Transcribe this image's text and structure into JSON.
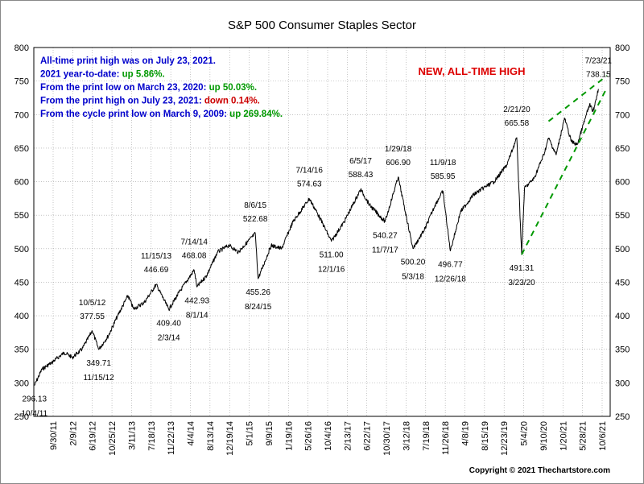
{
  "chart_data": {
    "type": "line",
    "title": "S&P 500 Consumer Staples Sector",
    "ylim": [
      250,
      800
    ],
    "y_ticks": [
      250,
      300,
      350,
      400,
      450,
      500,
      550,
      600,
      650,
      700,
      750,
      800
    ],
    "x_tick_labels": [
      "9/30/11",
      "2/9/12",
      "6/19/12",
      "10/25/12",
      "3/11/13",
      "7/18/13",
      "11/22/13",
      "4/4/14",
      "8/13/14",
      "12/19/14",
      "5/1/15",
      "9/9/15",
      "1/19/16",
      "5/26/16",
      "10/4/16",
      "2/13/17",
      "6/22/17",
      "10/30/17",
      "3/12/18",
      "7/19/18",
      "11/26/18",
      "4/8/19",
      "8/15/19",
      "12/23/19",
      "5/4/20",
      "9/10/20",
      "1/20/21",
      "5/28/21",
      "10/6/21"
    ],
    "x_range": [
      "2011-09-30",
      "2021-10-06"
    ],
    "grid": true,
    "series": [
      {
        "name": "",
        "color": "#000000",
        "points": [
          [
            "2011-10-04",
            296.13
          ],
          [
            "2011-11-20",
            320
          ],
          [
            "2012-01-20",
            330
          ],
          [
            "2012-04-10",
            345
          ],
          [
            "2012-06-01",
            338
          ],
          [
            "2012-08-01",
            350
          ],
          [
            "2012-10-05",
            377.55
          ],
          [
            "2012-11-15",
            349.71
          ],
          [
            "2013-01-15",
            370
          ],
          [
            "2013-03-15",
            400
          ],
          [
            "2013-05-20",
            430
          ],
          [
            "2013-06-25",
            410
          ],
          [
            "2013-09-01",
            420
          ],
          [
            "2013-11-15",
            446.69
          ],
          [
            "2014-02-03",
            409.4
          ],
          [
            "2014-04-10",
            435
          ],
          [
            "2014-07-14",
            468.08
          ],
          [
            "2014-08-01",
            442.93
          ],
          [
            "2014-10-01",
            460
          ],
          [
            "2014-12-10",
            495
          ],
          [
            "2015-02-20",
            505
          ],
          [
            "2015-04-20",
            495
          ],
          [
            "2015-08-06",
            522.68
          ],
          [
            "2015-08-24",
            455.26
          ],
          [
            "2015-11-15",
            505
          ],
          [
            "2016-01-20",
            500
          ],
          [
            "2016-04-01",
            540
          ],
          [
            "2016-07-14",
            574.63
          ],
          [
            "2016-09-10",
            550
          ],
          [
            "2016-12-01",
            511.0
          ],
          [
            "2017-02-20",
            540
          ],
          [
            "2017-06-05",
            588.43
          ],
          [
            "2017-08-01",
            565
          ],
          [
            "2017-11-07",
            540.27
          ],
          [
            "2018-01-29",
            606.9
          ],
          [
            "2018-05-03",
            500.2
          ],
          [
            "2018-07-19",
            530
          ],
          [
            "2018-09-20",
            565
          ],
          [
            "2018-11-09",
            585.95
          ],
          [
            "2018-12-26",
            496.77
          ],
          [
            "2019-03-01",
            555
          ],
          [
            "2019-05-20",
            580
          ],
          [
            "2019-07-20",
            590
          ],
          [
            "2019-10-01",
            600
          ],
          [
            "2019-12-20",
            625
          ],
          [
            "2020-02-21",
            665.58
          ],
          [
            "2020-03-23",
            491.31
          ],
          [
            "2020-04-10",
            590
          ],
          [
            "2020-06-10",
            605
          ],
          [
            "2020-08-10",
            640
          ],
          [
            "2020-09-10",
            665
          ],
          [
            "2020-10-28",
            640
          ],
          [
            "2020-12-20",
            695
          ],
          [
            "2021-02-01",
            660
          ],
          [
            "2021-03-10",
            655
          ],
          [
            "2021-05-28",
            715
          ],
          [
            "2021-06-20",
            705
          ],
          [
            "2021-07-23",
            738.15
          ]
        ]
      }
    ],
    "trendlines": [
      {
        "color": "#009900",
        "style": "dashed",
        "points": [
          [
            "2020-03-23",
            491.31
          ],
          [
            "2021-09-15",
            740
          ]
        ]
      },
      {
        "color": "#009900",
        "style": "dashed",
        "points": [
          [
            "2020-09-10",
            690
          ],
          [
            "2021-09-15",
            758
          ]
        ]
      }
    ],
    "annotations": [
      {
        "date": "2011-10-04",
        "value": 296.13,
        "label_value": "296.13",
        "label_date": "10/4/11",
        "position": "below"
      },
      {
        "date": "2012-10-05",
        "value": 377.55,
        "label_value": "377.55",
        "label_date": "10/5/12",
        "position": "above"
      },
      {
        "date": "2012-11-15",
        "value": 349.71,
        "label_value": "349.71",
        "label_date": "11/15/12",
        "position": "below"
      },
      {
        "date": "2013-11-15",
        "value": 446.69,
        "label_value": "446.69",
        "label_date": "11/15/13",
        "position": "above"
      },
      {
        "date": "2014-02-03",
        "value": 409.4,
        "label_value": "409.40",
        "label_date": "2/3/14",
        "position": "below"
      },
      {
        "date": "2014-07-14",
        "value": 468.08,
        "label_value": "468.08",
        "label_date": "7/14/14",
        "position": "above"
      },
      {
        "date": "2014-08-01",
        "value": 442.93,
        "label_value": "442.93",
        "label_date": "8/1/14",
        "position": "below"
      },
      {
        "date": "2015-08-06",
        "value": 522.68,
        "label_value": "522.68",
        "label_date": "8/6/15",
        "position": "above"
      },
      {
        "date": "2015-08-24",
        "value": 455.26,
        "label_value": "455.26",
        "label_date": "8/24/15",
        "position": "below"
      },
      {
        "date": "2016-07-14",
        "value": 574.63,
        "label_value": "574.63",
        "label_date": "7/14/16",
        "position": "above"
      },
      {
        "date": "2016-12-01",
        "value": 511.0,
        "label_value": "511.00",
        "label_date": "12/1/16",
        "position": "below"
      },
      {
        "date": "2017-06-05",
        "value": 588.43,
        "label_value": "588.43",
        "label_date": "6/5/17",
        "position": "above"
      },
      {
        "date": "2017-11-07",
        "value": 540.27,
        "label_value": "540.27",
        "label_date": "11/7/17",
        "position": "below"
      },
      {
        "date": "2018-01-29",
        "value": 606.9,
        "label_value": "606.90",
        "label_date": "1/29/18",
        "position": "above"
      },
      {
        "date": "2018-05-03",
        "value": 500.2,
        "label_value": "500.20",
        "label_date": "5/3/18",
        "position": "below"
      },
      {
        "date": "2018-11-09",
        "value": 585.95,
        "label_value": "585.95",
        "label_date": "11/9/18",
        "position": "above"
      },
      {
        "date": "2018-12-26",
        "value": 496.77,
        "label_value": "496.77",
        "label_date": "12/26/18",
        "position": "below"
      },
      {
        "date": "2020-02-21",
        "value": 665.58,
        "label_value": "665.58",
        "label_date": "2/21/20",
        "position": "above"
      },
      {
        "date": "2020-03-23",
        "value": 491.31,
        "label_value": "491.31",
        "label_date": "3/23/20",
        "position": "below"
      },
      {
        "date": "2021-07-23",
        "value": 738.15,
        "label_value": "738.15",
        "label_date": "7/23/21",
        "position": "above"
      }
    ]
  },
  "info_lines": [
    {
      "prefix": "All-time print high was on July 23, 2021.",
      "value": "",
      "value_color": "#0000cc",
      "prefix_color": "#0000cc"
    },
    {
      "prefix": "2021 year-to-date:  ",
      "value": "up 5.86%.",
      "value_color": "#009900",
      "prefix_color": "#0000cc"
    },
    {
      "prefix": "From the print low on March 23, 2020:  ",
      "value": "up 50.03%.",
      "value_color": "#009900",
      "prefix_color": "#0000cc"
    },
    {
      "prefix": "From the print high on July 23, 2021:  ",
      "value": "down 0.14%.",
      "value_color": "#cc0000",
      "prefix_color": "#0000cc"
    },
    {
      "prefix": "From the cycle print low on March 9, 2009:  ",
      "value": "up 269.84%.",
      "value_color": "#009900",
      "prefix_color": "#0000cc"
    }
  ],
  "callout": {
    "text": "NEW, ALL-TIME HIGH",
    "color": "#dd0000"
  },
  "copyright": "Copyright © 2021 Thechartstore.com",
  "colors": {
    "grid": "#a0a0a0",
    "frame": "#000000",
    "line": "#000000",
    "trend": "#009900"
  }
}
